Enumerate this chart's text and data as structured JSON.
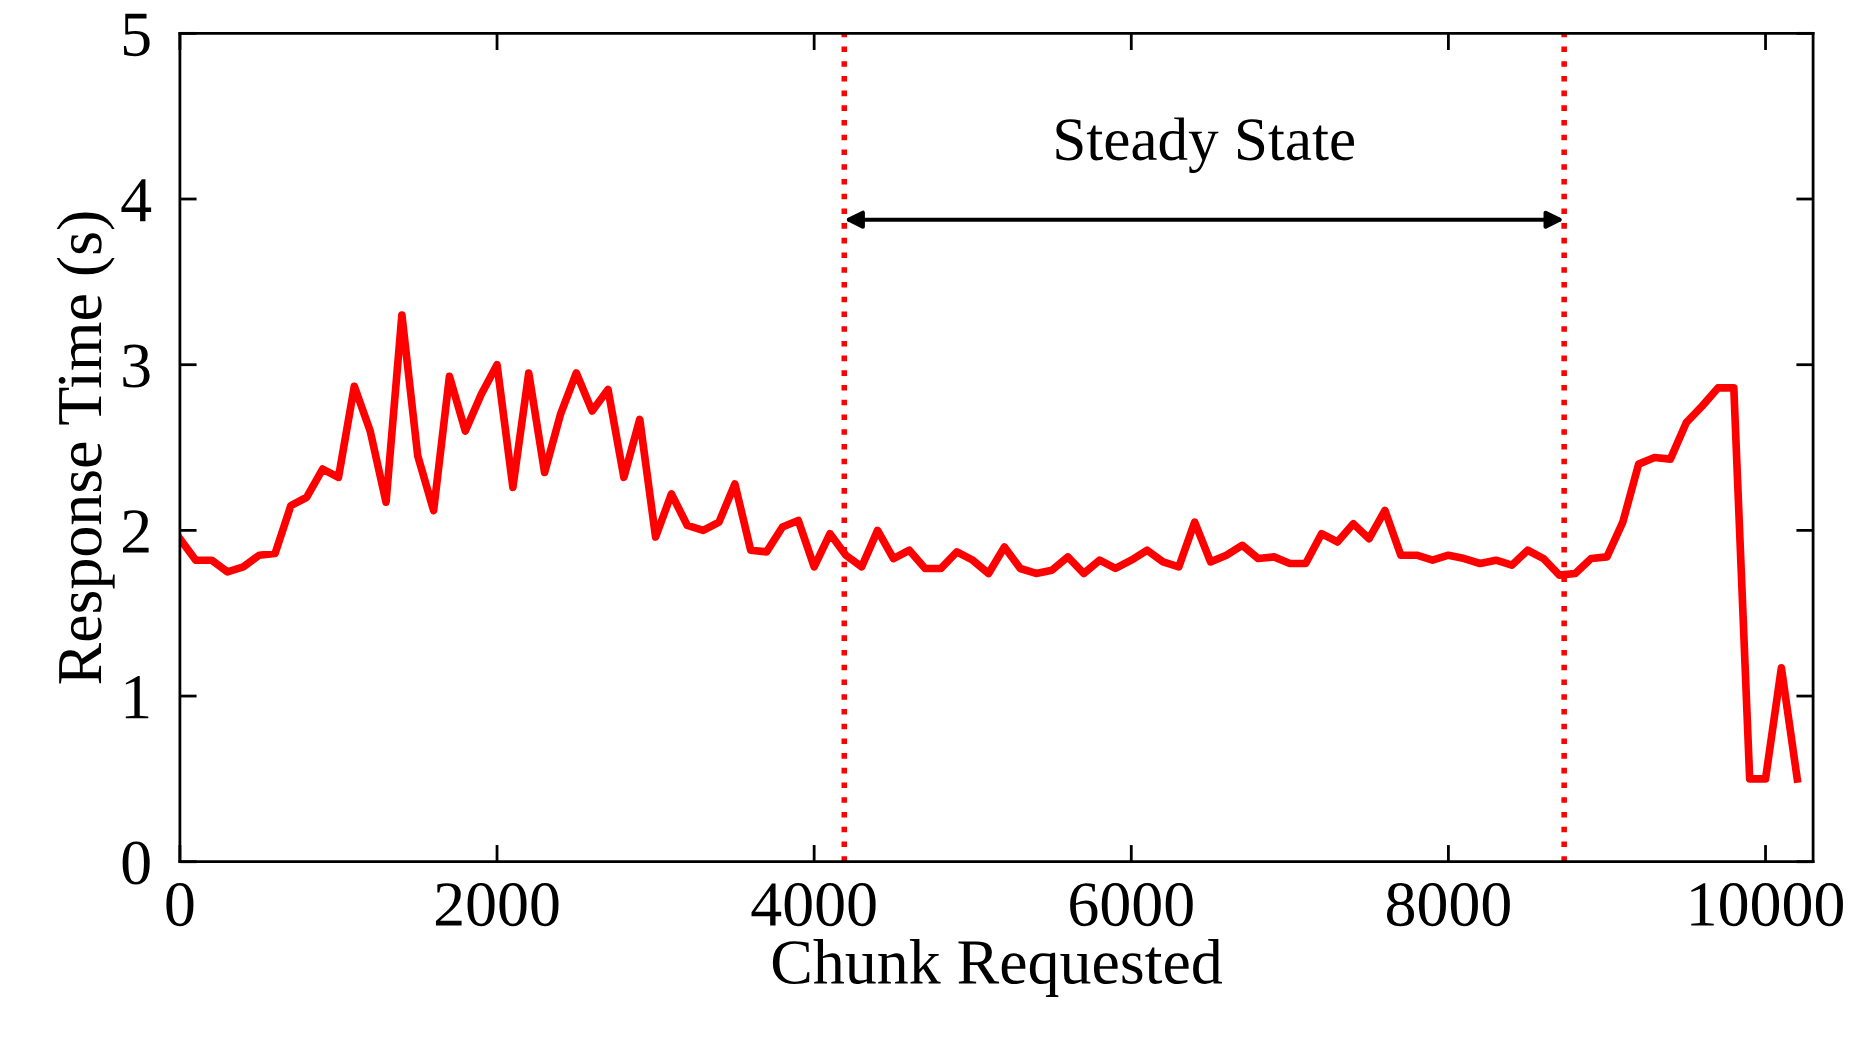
{
  "chart_data": {
    "type": "line",
    "xlabel": "Chunk Requested",
    "ylabel": "Response Time (s)",
    "x": [
      0,
      100,
      200,
      300,
      400,
      500,
      600,
      700,
      800,
      900,
      1000,
      1100,
      1200,
      1300,
      1400,
      1500,
      1600,
      1700,
      1800,
      1900,
      2000,
      2100,
      2200,
      2300,
      2400,
      2500,
      2600,
      2700,
      2800,
      2900,
      3000,
      3100,
      3200,
      3300,
      3400,
      3500,
      3600,
      3700,
      3800,
      3900,
      4000,
      4100,
      4200,
      4300,
      4400,
      4500,
      4600,
      4700,
      4800,
      4900,
      5000,
      5100,
      5200,
      5300,
      5400,
      5500,
      5600,
      5700,
      5800,
      5900,
      6000,
      6100,
      6200,
      6300,
      6400,
      6500,
      6600,
      6700,
      6800,
      6900,
      7000,
      7100,
      7200,
      7300,
      7400,
      7500,
      7600,
      7700,
      7800,
      7900,
      8000,
      8100,
      8200,
      8300,
      8400,
      8500,
      8600,
      8700,
      8800,
      8900,
      9000,
      9100,
      9200,
      9300,
      9400,
      9500,
      9600,
      9700,
      9800,
      9900,
      10000,
      10100,
      10200
    ],
    "series": [
      {
        "color": "#ff0000",
        "values": [
          1.95,
          1.82,
          1.82,
          1.75,
          1.78,
          1.85,
          1.86,
          2.15,
          2.2,
          2.37,
          2.32,
          2.87,
          2.6,
          2.17,
          3.3,
          2.45,
          2.12,
          2.93,
          2.6,
          2.82,
          3.0,
          2.26,
          2.95,
          2.35,
          2.7,
          2.95,
          2.72,
          2.85,
          2.32,
          2.67,
          1.96,
          2.22,
          2.03,
          2.0,
          2.05,
          2.28,
          1.88,
          1.87,
          2.02,
          2.06,
          1.78,
          1.98,
          1.85,
          1.78,
          2.0,
          1.83,
          1.88,
          1.77,
          1.77,
          1.87,
          1.82,
          1.74,
          1.9,
          1.77,
          1.74,
          1.76,
          1.84,
          1.74,
          1.82,
          1.77,
          1.82,
          1.88,
          1.81,
          1.78,
          2.05,
          1.81,
          1.85,
          1.91,
          1.83,
          1.84,
          1.8,
          1.8,
          1.98,
          1.93,
          2.04,
          1.95,
          2.12,
          1.85,
          1.85,
          1.82,
          1.85,
          1.83,
          1.8,
          1.82,
          1.79,
          1.88,
          1.83,
          1.73,
          1.74,
          1.83,
          1.84,
          2.05,
          2.4,
          2.44,
          2.43,
          2.65,
          2.75,
          2.86,
          2.86,
          0.5,
          0.5,
          1.17,
          0.5
        ]
      }
    ],
    "xlim": [
      0,
      10300
    ],
    "xticks": [
      0,
      2000,
      4000,
      6000,
      8000,
      10000
    ],
    "ylim": [
      0,
      5
    ],
    "yticks": [
      0,
      1,
      2,
      3,
      4,
      5
    ],
    "marker": "none",
    "line_style": "solid",
    "ref_lines": [
      {
        "axis": "x",
        "value": 4190,
        "color": "#ff0000",
        "line_style": "dotted"
      },
      {
        "axis": "x",
        "value": 8730,
        "color": "#ff0000",
        "line_style": "dotted"
      }
    ],
    "annotations": [
      "Steady State"
    ]
  }
}
